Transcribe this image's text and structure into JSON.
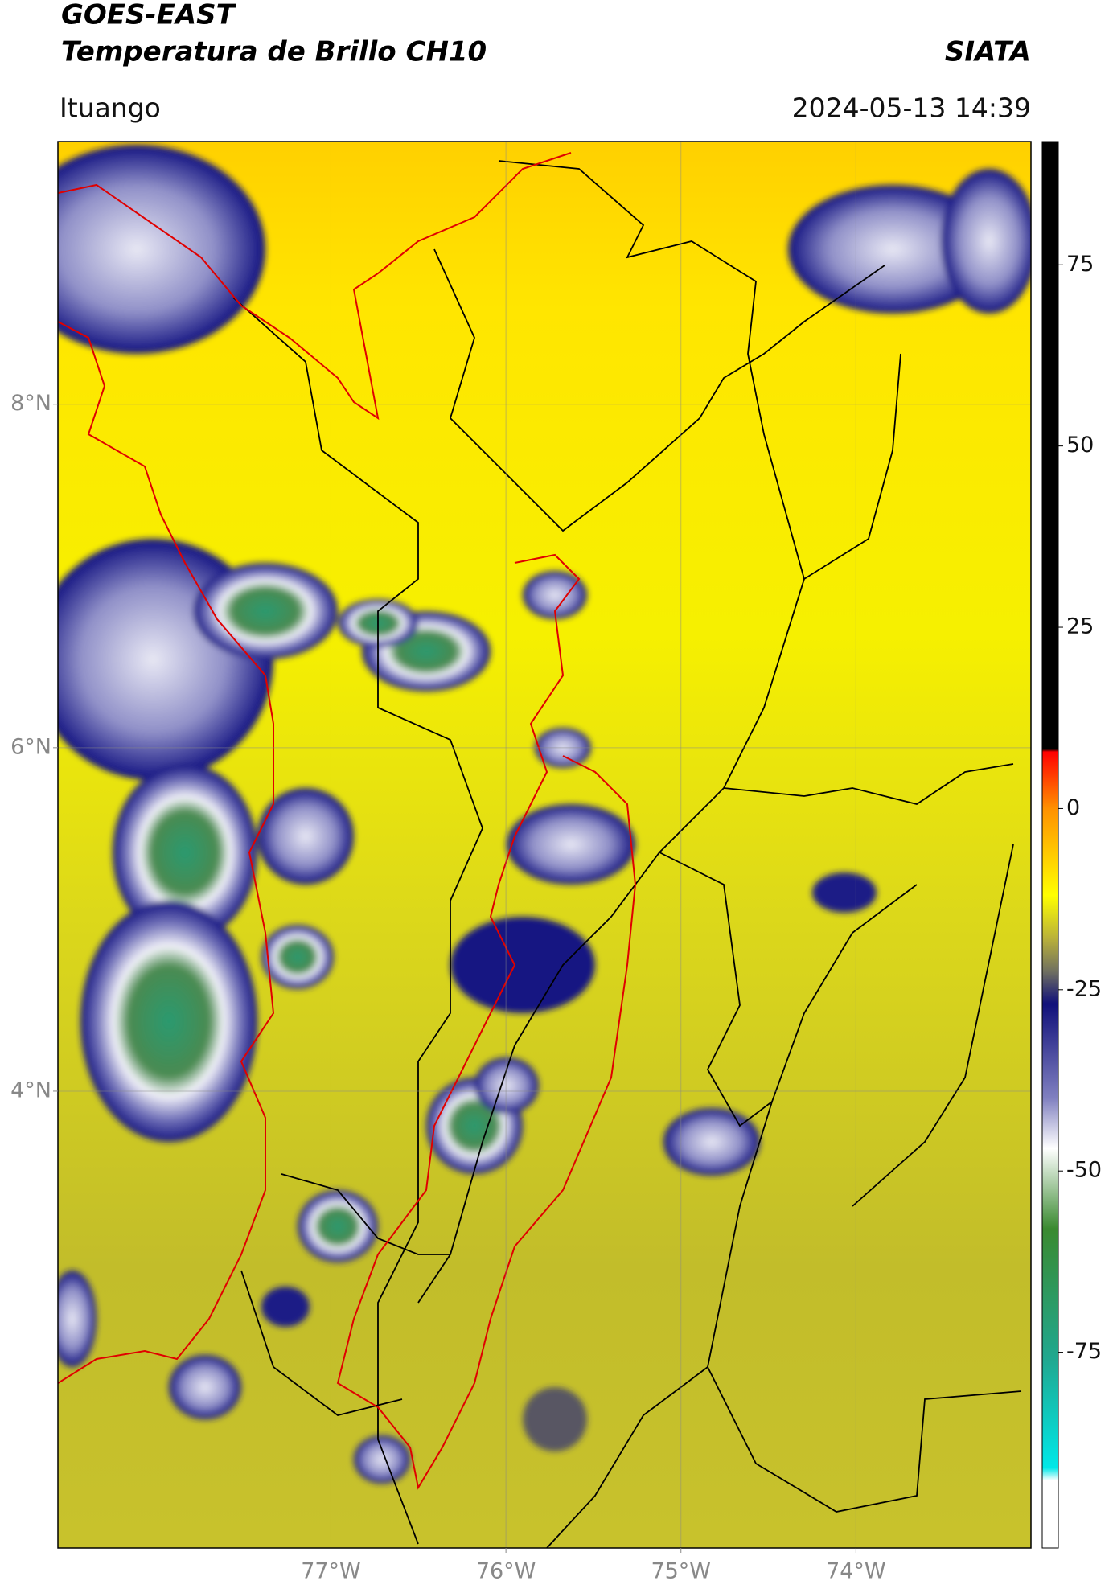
{
  "header": {
    "title": "GOES-EAST",
    "subtitle": "Temperatura de Brillo CH10",
    "brand": "SIATA",
    "location": "Ituango",
    "datetime": "2024-05-13 14:39"
  },
  "chart_data": {
    "type": "map",
    "xlim": [
      -78.56,
      -73.0
    ],
    "ylim": [
      1.34,
      9.53
    ],
    "xticks": [
      {
        "value": -77,
        "label": "77°W"
      },
      {
        "value": -76,
        "label": "76°W"
      },
      {
        "value": -75,
        "label": "75°W"
      },
      {
        "value": -74,
        "label": "74°W"
      }
    ],
    "yticks": [
      {
        "value": 4,
        "label": "4°N"
      },
      {
        "value": 6,
        "label": "6°N"
      },
      {
        "value": 8,
        "label": "8°N"
      }
    ],
    "grid": true,
    "colorbar": {
      "lim": [
        -102,
        92
      ],
      "ticks": [
        -75,
        -50,
        -25,
        0,
        25,
        50,
        75
      ]
    }
  }
}
